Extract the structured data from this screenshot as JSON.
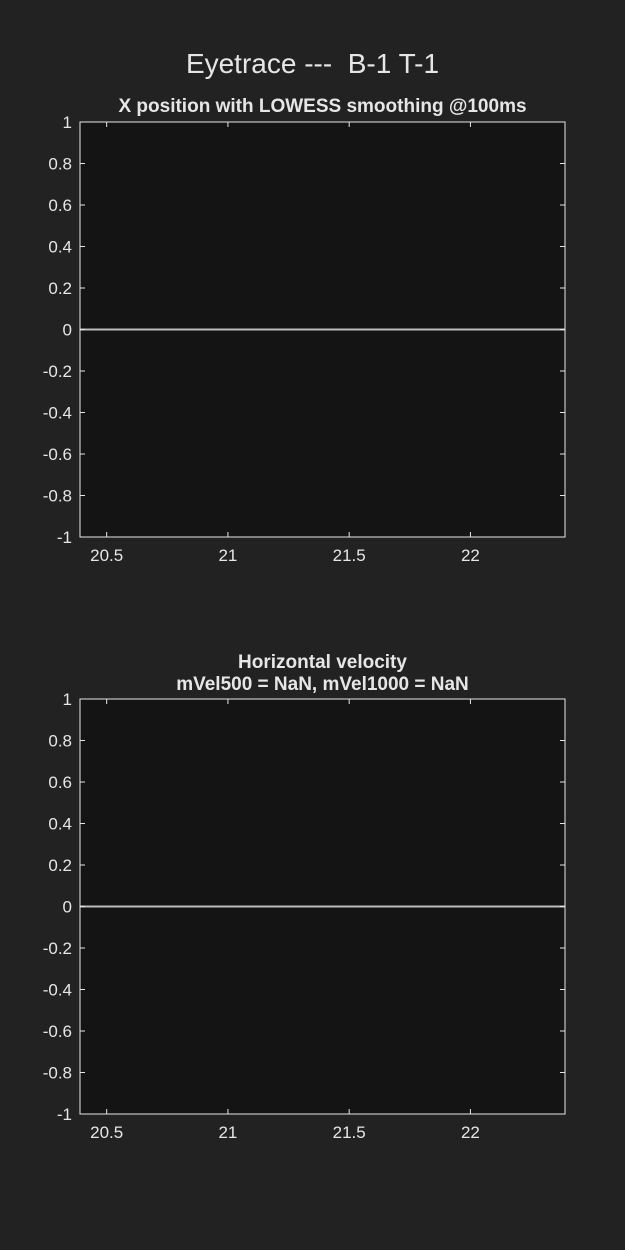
{
  "figure": {
    "title": "Eyetrace ---  B-1 T-1"
  },
  "colors": {
    "figure_bg": "#222222",
    "axes_bg": "#141414",
    "axes_edge": "#e6e6e6",
    "text": "#e6e6e6",
    "trace": "#bdbdbd"
  },
  "chart_data": [
    {
      "type": "line",
      "title": "X position with LOWESS smoothing @100ms",
      "xlabel": "",
      "ylabel": "",
      "xlim": [
        20.39,
        22.39
      ],
      "ylim": [
        -1,
        1
      ],
      "xticks": [
        20.5,
        21,
        21.5,
        22
      ],
      "xticklabels": [
        "20.5",
        "21",
        "21.5",
        "22"
      ],
      "yticks": [
        1,
        0.8,
        0.6,
        0.4,
        0.2,
        0,
        -0.2,
        -0.4,
        -0.6,
        -0.8,
        -1
      ],
      "yticklabels": [
        "1",
        "0.8",
        "0.6",
        "0.4",
        "0.2",
        "0",
        "-0.2",
        "-0.4",
        "-0.6",
        "-0.8",
        "-1"
      ],
      "grid": false,
      "series": [
        {
          "x": [
            20.39,
            22.39
          ],
          "y": [
            0,
            0
          ]
        }
      ]
    },
    {
      "type": "line",
      "title": "Horizontal velocity",
      "subtitle": "mVel500 = NaN, mVel1000 = NaN",
      "xlabel": "",
      "ylabel": "",
      "xlim": [
        20.39,
        22.39
      ],
      "ylim": [
        -1,
        1
      ],
      "xticks": [
        20.5,
        21,
        21.5,
        22
      ],
      "xticklabels": [
        "20.5",
        "21",
        "21.5",
        "22"
      ],
      "yticks": [
        1,
        0.8,
        0.6,
        0.4,
        0.2,
        0,
        -0.2,
        -0.4,
        -0.6,
        -0.8,
        -1
      ],
      "yticklabels": [
        "1",
        "0.8",
        "0.6",
        "0.4",
        "0.2",
        "0",
        "-0.2",
        "-0.4",
        "-0.6",
        "-0.8",
        "-1"
      ],
      "grid": false,
      "series": [
        {
          "x": [
            20.39,
            22.39
          ],
          "y": [
            0,
            0
          ]
        }
      ]
    }
  ]
}
